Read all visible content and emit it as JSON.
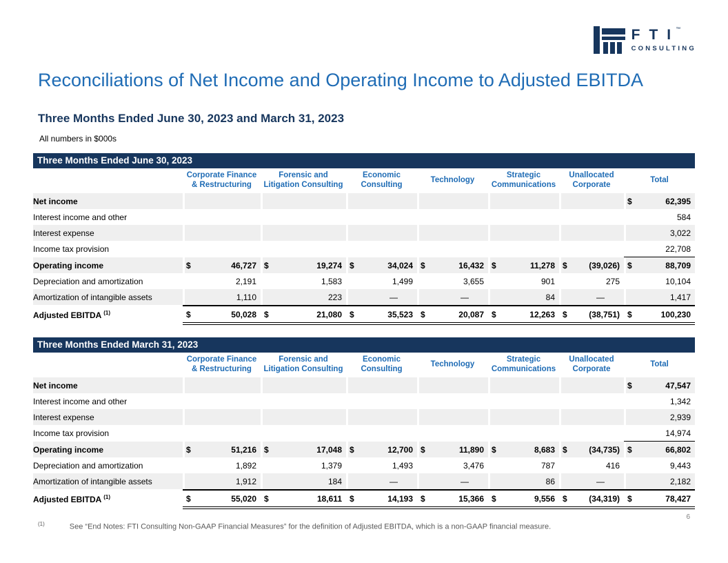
{
  "page": {
    "title": "Reconciliations of Net Income and Operating Income to Adjusted EBITDA",
    "subtitle": "Three Months Ended June 30, 2023 and March 31, 2023",
    "units_note": "All numbers in $000s",
    "page_number": "6",
    "footnote_marker": "(1)",
    "footnote_text": "See “End Notes: FTI Consulting Non-GAAP Financial Measures” for the definition of Adjusted EBITDA, which is a non-GAAP financial measure."
  },
  "logo": {
    "brand": "FTI",
    "trademark": "™",
    "subbrand": "CONSULTING"
  },
  "colors": {
    "navy": "#17365D",
    "accent_blue": "#1F6CB5",
    "row_shade": "#EFEFEF",
    "footnote_gray": "#595959"
  },
  "columns": [
    "Corporate Finance\n& Restructuring",
    "Forensic and\nLitigation Consulting",
    "Economic\nConsulting",
    "Technology",
    "Strategic\nCommunications",
    "Unallocated\nCorporate",
    "Total"
  ],
  "tables": [
    {
      "banner": "Three Months Ended June 30, 2023",
      "rows": [
        {
          "label": "Net income",
          "bold": true,
          "shaded": true,
          "cells": [
            [
              "",
              ""
            ],
            [
              "",
              ""
            ],
            [
              "",
              ""
            ],
            [
              "",
              ""
            ],
            [
              "",
              ""
            ],
            [
              "",
              ""
            ],
            [
              "$",
              "62,395"
            ]
          ]
        },
        {
          "label": "Interest income and other",
          "cells": [
            [
              "",
              ""
            ],
            [
              "",
              ""
            ],
            [
              "",
              ""
            ],
            [
              "",
              ""
            ],
            [
              "",
              ""
            ],
            [
              "",
              ""
            ],
            [
              "",
              "584"
            ]
          ]
        },
        {
          "label": "Interest expense",
          "shaded": true,
          "cells": [
            [
              "",
              ""
            ],
            [
              "",
              ""
            ],
            [
              "",
              ""
            ],
            [
              "",
              ""
            ],
            [
              "",
              ""
            ],
            [
              "",
              ""
            ],
            [
              "",
              "3,022"
            ]
          ]
        },
        {
          "label": "Income tax provision",
          "cls": "tax",
          "cells": [
            [
              "",
              ""
            ],
            [
              "",
              ""
            ],
            [
              "",
              ""
            ],
            [
              "",
              ""
            ],
            [
              "",
              ""
            ],
            [
              "",
              ""
            ],
            [
              "",
              "22,708"
            ]
          ]
        },
        {
          "label": "Operating income",
          "bold": true,
          "shaded": true,
          "cells": [
            [
              "$",
              "46,727"
            ],
            [
              "$",
              "19,274"
            ],
            [
              "$",
              "34,024"
            ],
            [
              "$",
              "16,432"
            ],
            [
              "$",
              "11,278"
            ],
            [
              "$",
              "(39,026)"
            ],
            [
              "$",
              "88,709"
            ]
          ]
        },
        {
          "label": "Depreciation and amortization",
          "cells": [
            [
              "",
              "2,191"
            ],
            [
              "",
              "1,583"
            ],
            [
              "",
              "1,499"
            ],
            [
              "",
              "3,655"
            ],
            [
              "",
              "901"
            ],
            [
              "",
              "275"
            ],
            [
              "",
              "10,104"
            ]
          ]
        },
        {
          "label": "Amortization of intangible assets",
          "shaded": true,
          "cells": [
            [
              "",
              "1,110"
            ],
            [
              "",
              "223"
            ],
            [
              "",
              "—"
            ],
            [
              "",
              "—"
            ],
            [
              "",
              "84"
            ],
            [
              "",
              "—"
            ],
            [
              "",
              "1,417"
            ]
          ]
        },
        {
          "label": "Adjusted EBITDA",
          "sup": "(1)",
          "bold": true,
          "cls": "ebitda",
          "cells": [
            [
              "$",
              "50,028"
            ],
            [
              "$",
              "21,080"
            ],
            [
              "$",
              "35,523"
            ],
            [
              "$",
              "20,087"
            ],
            [
              "$",
              "12,263"
            ],
            [
              "$",
              "(38,751)"
            ],
            [
              "$",
              "100,230"
            ]
          ]
        }
      ]
    },
    {
      "banner": "Three Months Ended March 31, 2023",
      "rows": [
        {
          "label": "Net income",
          "bold": true,
          "shaded": true,
          "cells": [
            [
              "",
              ""
            ],
            [
              "",
              ""
            ],
            [
              "",
              ""
            ],
            [
              "",
              ""
            ],
            [
              "",
              ""
            ],
            [
              "",
              ""
            ],
            [
              "$",
              "47,547"
            ]
          ]
        },
        {
          "label": "Interest income and other",
          "cells": [
            [
              "",
              ""
            ],
            [
              "",
              ""
            ],
            [
              "",
              ""
            ],
            [
              "",
              ""
            ],
            [
              "",
              ""
            ],
            [
              "",
              ""
            ],
            [
              "",
              "1,342"
            ]
          ]
        },
        {
          "label": "Interest expense",
          "shaded": true,
          "cells": [
            [
              "",
              ""
            ],
            [
              "",
              ""
            ],
            [
              "",
              ""
            ],
            [
              "",
              ""
            ],
            [
              "",
              ""
            ],
            [
              "",
              ""
            ],
            [
              "",
              "2,939"
            ]
          ]
        },
        {
          "label": "Income tax provision",
          "cls": "tax",
          "cells": [
            [
              "",
              ""
            ],
            [
              "",
              ""
            ],
            [
              "",
              ""
            ],
            [
              "",
              ""
            ],
            [
              "",
              ""
            ],
            [
              "",
              ""
            ],
            [
              "",
              "14,974"
            ]
          ]
        },
        {
          "label": "Operating income",
          "bold": true,
          "shaded": true,
          "cells": [
            [
              "$",
              "51,216"
            ],
            [
              "$",
              "17,048"
            ],
            [
              "$",
              "12,700"
            ],
            [
              "$",
              "11,890"
            ],
            [
              "$",
              "8,683"
            ],
            [
              "$",
              "(34,735)"
            ],
            [
              "$",
              "66,802"
            ]
          ]
        },
        {
          "label": "Depreciation and amortization",
          "cells": [
            [
              "",
              "1,892"
            ],
            [
              "",
              "1,379"
            ],
            [
              "",
              "1,493"
            ],
            [
              "",
              "3,476"
            ],
            [
              "",
              "787"
            ],
            [
              "",
              "416"
            ],
            [
              "",
              "9,443"
            ]
          ]
        },
        {
          "label": "Amortization of intangible assets",
          "shaded": true,
          "cells": [
            [
              "",
              "1,912"
            ],
            [
              "",
              "184"
            ],
            [
              "",
              "—"
            ],
            [
              "",
              "—"
            ],
            [
              "",
              "86"
            ],
            [
              "",
              "—"
            ],
            [
              "",
              "2,182"
            ]
          ]
        },
        {
          "label": "Adjusted EBITDA",
          "sup": "(1)",
          "bold": true,
          "cls": "ebitda",
          "cells": [
            [
              "$",
              "55,020"
            ],
            [
              "$",
              "18,611"
            ],
            [
              "$",
              "14,193"
            ],
            [
              "$",
              "15,366"
            ],
            [
              "$",
              "9,556"
            ],
            [
              "$",
              "(34,319)"
            ],
            [
              "$",
              "78,427"
            ]
          ]
        }
      ]
    }
  ]
}
